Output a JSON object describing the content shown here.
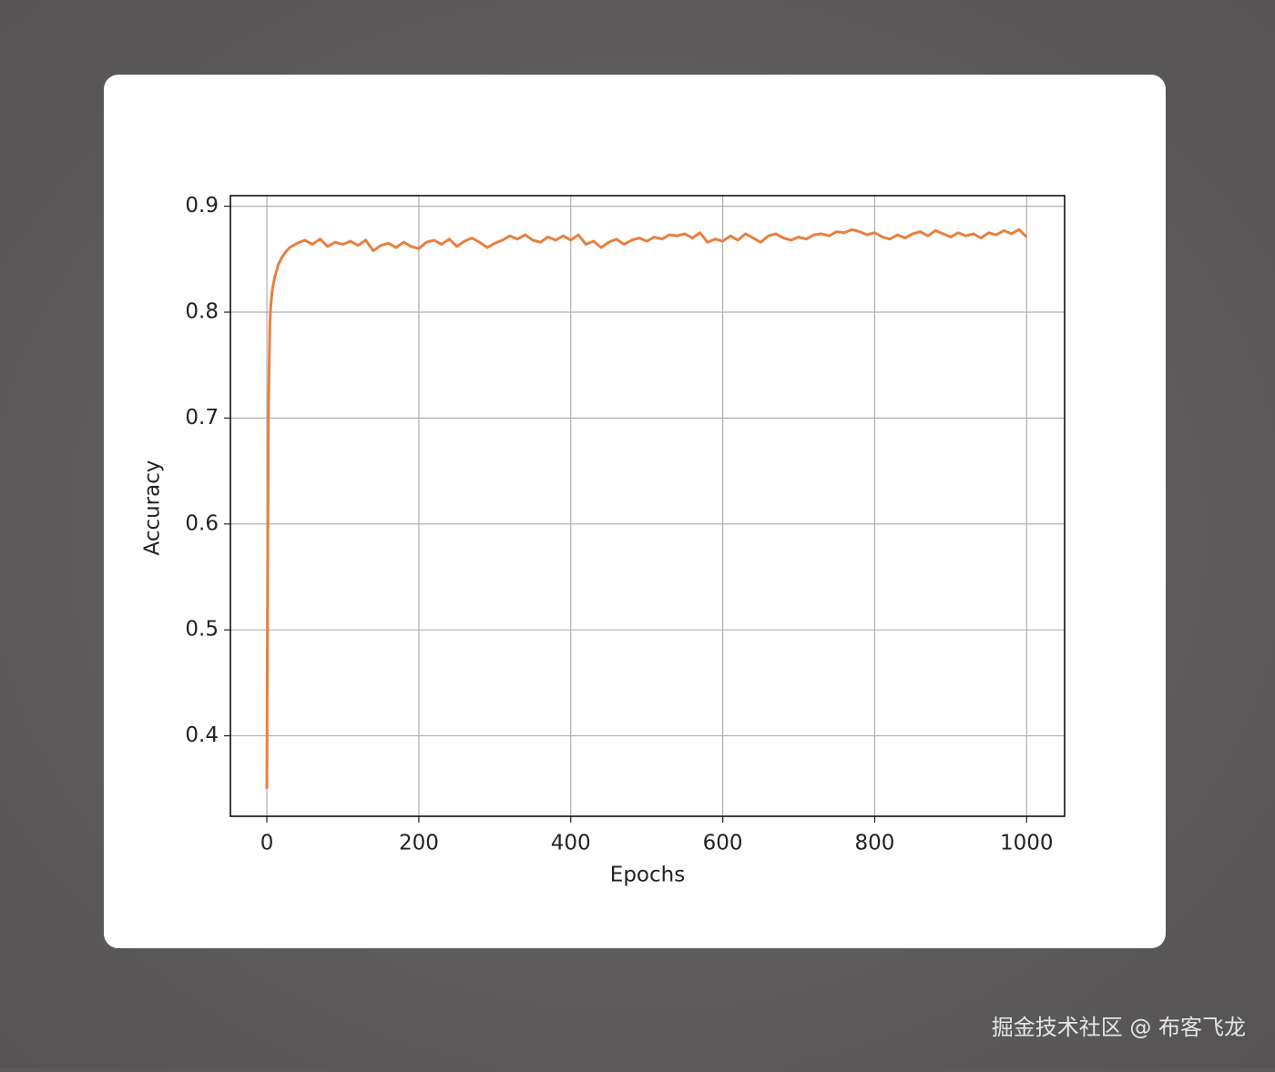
{
  "chart_data": {
    "type": "line",
    "xlabel": "Epochs",
    "ylabel": "Accuracy",
    "x": [
      0,
      1,
      2,
      3,
      4,
      5,
      7,
      10,
      15,
      20,
      25,
      30,
      40,
      50,
      60,
      70,
      80,
      90,
      100,
      110,
      120,
      130,
      140,
      150,
      160,
      170,
      180,
      190,
      200,
      210,
      220,
      230,
      240,
      250,
      260,
      270,
      280,
      290,
      300,
      310,
      320,
      330,
      340,
      350,
      360,
      370,
      380,
      390,
      400,
      410,
      420,
      430,
      440,
      450,
      460,
      470,
      480,
      490,
      500,
      510,
      520,
      530,
      540,
      550,
      560,
      570,
      580,
      590,
      600,
      610,
      620,
      630,
      640,
      650,
      660,
      670,
      680,
      690,
      700,
      710,
      720,
      730,
      740,
      750,
      760,
      770,
      780,
      790,
      800,
      810,
      820,
      830,
      840,
      850,
      860,
      870,
      880,
      890,
      900,
      910,
      920,
      930,
      940,
      950,
      960,
      970,
      980,
      990,
      1000
    ],
    "values": [
      0.35,
      0.55,
      0.7,
      0.75,
      0.79,
      0.805,
      0.82,
      0.832,
      0.845,
      0.852,
      0.857,
      0.861,
      0.865,
      0.868,
      0.864,
      0.869,
      0.862,
      0.866,
      0.864,
      0.867,
      0.863,
      0.868,
      0.858,
      0.863,
      0.865,
      0.861,
      0.866,
      0.862,
      0.86,
      0.866,
      0.868,
      0.864,
      0.869,
      0.862,
      0.867,
      0.87,
      0.866,
      0.861,
      0.865,
      0.868,
      0.872,
      0.869,
      0.873,
      0.868,
      0.866,
      0.871,
      0.868,
      0.872,
      0.868,
      0.873,
      0.864,
      0.867,
      0.861,
      0.866,
      0.869,
      0.864,
      0.868,
      0.87,
      0.867,
      0.871,
      0.869,
      0.873,
      0.872,
      0.874,
      0.87,
      0.875,
      0.866,
      0.869,
      0.867,
      0.872,
      0.868,
      0.874,
      0.87,
      0.866,
      0.872,
      0.874,
      0.87,
      0.868,
      0.871,
      0.869,
      0.873,
      0.874,
      0.872,
      0.876,
      0.875,
      0.878,
      0.876,
      0.873,
      0.875,
      0.871,
      0.869,
      0.873,
      0.87,
      0.874,
      0.876,
      0.872,
      0.877,
      0.874,
      0.871,
      0.875,
      0.872,
      0.874,
      0.87,
      0.875,
      0.873,
      0.877,
      0.874,
      0.878,
      0.871
    ],
    "color": "#e8803f",
    "xlim": [
      -48,
      1050
    ],
    "ylim": [
      0.324,
      0.91
    ],
    "xticks": [
      0,
      200,
      400,
      600,
      800,
      1000
    ],
    "yticks": [
      0.4,
      0.5,
      0.6,
      0.7,
      0.8,
      0.9
    ],
    "grid": true
  },
  "watermark": "掘金技术社区 @ 布客飞龙"
}
